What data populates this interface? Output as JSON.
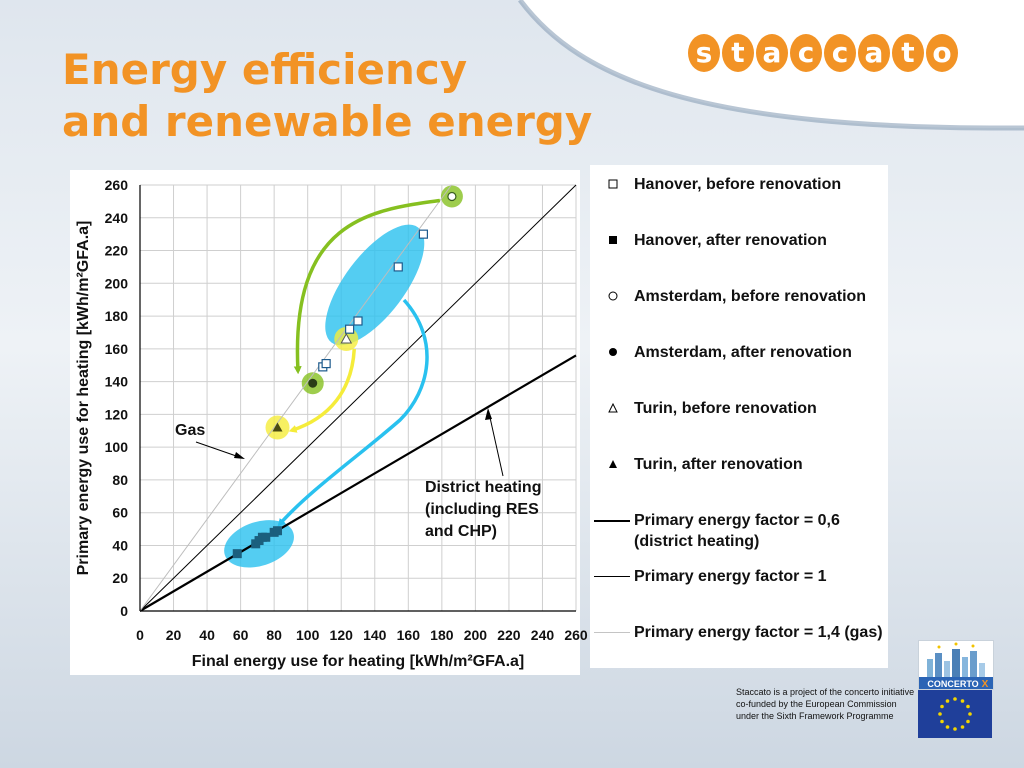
{
  "title_line1": "Energy efficiency",
  "title_line2": "and renewable energy",
  "logo_letters": [
    "s",
    "t",
    "a",
    "c",
    "c",
    "a",
    "t",
    "o"
  ],
  "colors": {
    "accent": "#f29325",
    "cyan": "#29c1ef",
    "green": "#86c020",
    "yellow": "#f5ec3a"
  },
  "annotations": {
    "gas": "Gas",
    "district_heating": [
      "District heating",
      "(including RES",
      "and CHP)"
    ]
  },
  "legend": [
    {
      "label": "Hanover, before renovation",
      "symbol": "open-square"
    },
    {
      "label": "Hanover, after renovation",
      "symbol": "filled-square"
    },
    {
      "label": "Amsterdam, before renovation",
      "symbol": "open-circle"
    },
    {
      "label": "Amsterdam, after renovation",
      "symbol": "filled-circle"
    },
    {
      "label": "Turin, before renovation",
      "symbol": "open-triangle"
    },
    {
      "label": "Turin, after renovation",
      "symbol": "filled-triangle"
    },
    {
      "label": "Primary energy factor = 0,6 (district heating)",
      "symbol": "thick-line"
    },
    {
      "label": "Primary energy factor = 1",
      "symbol": "thin-line"
    },
    {
      "label": "Primary energy factor = 1,4 (gas)",
      "symbol": "faint-line"
    }
  ],
  "footer_note": "Staccato is a project of the concerto initiative co-funded by the European Commission under the Sixth Framework Programme",
  "badge_text": "CONCERTO",
  "chart_data": {
    "type": "scatter",
    "xlabel": "Final energy use for heating [kWh/m²GFA.a]",
    "ylabel": "Primary energy use for heating [kWh/m²GFA.a]",
    "xlim": [
      0,
      260
    ],
    "ylim": [
      0,
      260
    ],
    "xticks": [
      0,
      20,
      40,
      60,
      80,
      100,
      120,
      140,
      160,
      180,
      200,
      220,
      240,
      260
    ],
    "yticks": [
      0,
      20,
      40,
      60,
      80,
      100,
      120,
      140,
      160,
      180,
      200,
      220,
      240,
      260
    ],
    "grid": true,
    "series": [
      {
        "name": "Hanover, before renovation",
        "marker": "open-square",
        "points": [
          [
            109,
            149
          ],
          [
            111,
            151
          ],
          [
            125,
            172
          ],
          [
            130,
            177
          ],
          [
            154,
            210
          ],
          [
            169,
            230
          ]
        ]
      },
      {
        "name": "Hanover, after renovation",
        "marker": "filled-square",
        "points": [
          [
            58,
            35
          ],
          [
            69,
            41
          ],
          [
            71,
            43
          ],
          [
            73,
            45
          ],
          [
            75,
            45
          ],
          [
            80,
            48
          ],
          [
            82,
            49
          ]
        ]
      },
      {
        "name": "Amsterdam, before renovation",
        "marker": "open-circle",
        "points": [
          [
            186,
            253
          ]
        ]
      },
      {
        "name": "Amsterdam, after renovation",
        "marker": "filled-circle",
        "points": [
          [
            103,
            139
          ]
        ]
      },
      {
        "name": "Turin, before renovation",
        "marker": "open-triangle",
        "points": [
          [
            123,
            166
          ]
        ]
      },
      {
        "name": "Turin, after renovation",
        "marker": "filled-triangle",
        "points": [
          [
            82,
            112
          ]
        ]
      }
    ],
    "reference_lines": [
      {
        "name": "Primary energy factor = 0,6 (district heating)",
        "slope": 0.6,
        "style": "thick"
      },
      {
        "name": "Primary energy factor = 1",
        "slope": 1.0,
        "style": "thin"
      },
      {
        "name": "Primary energy factor = 1,4 (gas)",
        "slope": 1.4,
        "style": "faint"
      }
    ]
  }
}
